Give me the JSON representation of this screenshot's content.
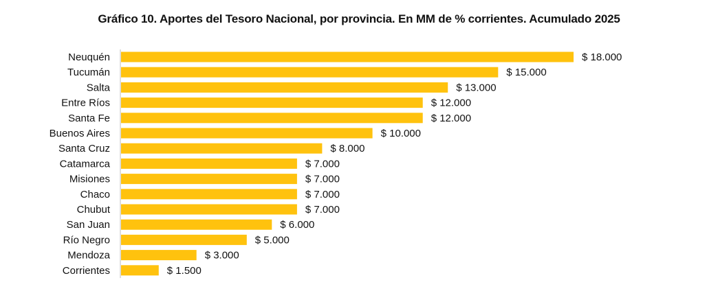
{
  "chart_data": {
    "type": "bar",
    "orientation": "horizontal",
    "title": "Gráfico 10. Aportes del Tesoro Nacional, por provincia. En MM de % corrientes. Acumulado 2025",
    "xlabel": "",
    "ylabel": "",
    "value_prefix": "$ ",
    "categories": [
      "Neuquén",
      "Tucumán",
      "Salta",
      "Entre Ríos",
      "Santa Fe",
      "Buenos Aires",
      "Santa Cruz",
      "Catamarca",
      "Misiones",
      "Chaco",
      "Chubut",
      "San Juan",
      "Río Negro",
      "Mendoza",
      "Corrientes"
    ],
    "values": [
      18000,
      15000,
      13000,
      12000,
      12000,
      10000,
      8000,
      7000,
      7000,
      7000,
      7000,
      6000,
      5000,
      3000,
      1500
    ],
    "value_labels": [
      "$ 18.000",
      "$ 15.000",
      "$ 13.000",
      "$ 12.000",
      "$ 12.000",
      "$ 10.000",
      "$ 8.000",
      "$ 7.000",
      "$ 7.000",
      "$ 7.000",
      "$ 7.000",
      "$ 6.000",
      "$ 5.000",
      "$ 3.000",
      "$ 1.500"
    ],
    "xlim": [
      0,
      18000
    ],
    "grid": false,
    "bar_color": "#FFC20E",
    "axis_color": "#bdbdbd"
  }
}
